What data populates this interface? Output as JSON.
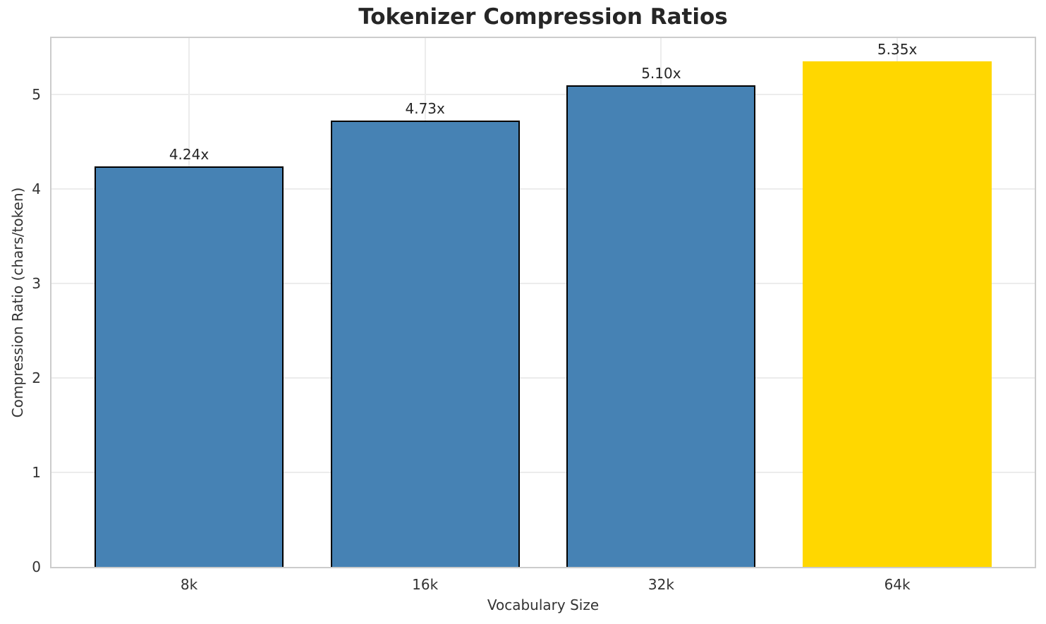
{
  "chart_data": {
    "type": "bar",
    "title": "Tokenizer Compression Ratios",
    "xlabel": "Vocabulary Size",
    "ylabel": "Compression Ratio (chars/token)",
    "categories": [
      "8k",
      "16k",
      "32k",
      "64k"
    ],
    "values": [
      4.24,
      4.73,
      5.1,
      5.35
    ],
    "bar_labels": [
      "4.24x",
      "4.73x",
      "5.10x",
      "5.35x"
    ],
    "bar_colors": [
      "#4682B4",
      "#4682B4",
      "#4682B4",
      "#FFD700"
    ],
    "bar_edge_colors": [
      "#000000",
      "#000000",
      "#000000",
      "none"
    ],
    "highlighted_category": "64k",
    "ylim": [
      0,
      5.6
    ],
    "yticks": [
      0,
      1,
      2,
      3,
      4,
      5
    ],
    "ytick_labels": [
      "0",
      "1",
      "2",
      "3",
      "4",
      "5"
    ],
    "grid": true,
    "legend": false,
    "colors": {
      "bar_default": "#4682B4",
      "bar_highlight": "#FFD700",
      "bar_edge": "#000000",
      "grid": "#ececec",
      "spine": "#cccccc",
      "title_text": "#262626",
      "tick_text": "#333333"
    }
  }
}
